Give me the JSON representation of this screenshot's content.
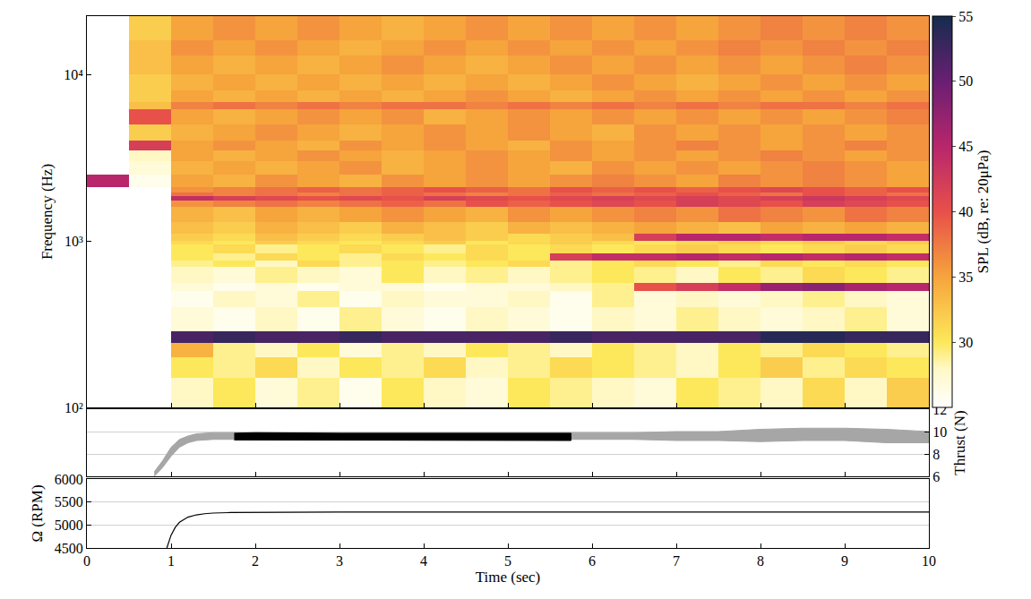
{
  "chart_data": [
    {
      "type": "heatmap",
      "ylabel": "Frequency (Hz)",
      "log": "y",
      "tick_labels": "y",
      "xlim": [
        0,
        10
      ],
      "xticks": [
        0,
        1,
        2,
        3,
        4,
        5,
        6,
        7,
        8,
        9,
        10
      ],
      "ylim": [
        100,
        22400
      ],
      "yticks": [
        {
          "value": 100,
          "label": "10²"
        },
        {
          "value": 1000,
          "label": "10³"
        },
        {
          "value": 10000,
          "label": "10⁴"
        }
      ],
      "time_edges": [
        0,
        0.5,
        1,
        1.5,
        2,
        2.5,
        3,
        3.5,
        4,
        4.5,
        5,
        5.5,
        6,
        6.5,
        7,
        7.5,
        8,
        8.5,
        9,
        9.5,
        10
      ],
      "frequency_edges": [
        100,
        150,
        200,
        245,
        285,
        400,
        500,
        560,
        700,
        760,
        840,
        950,
        1000,
        1100,
        1300,
        1600,
        1750,
        1850,
        1950,
        2100,
        2500,
        3000,
        3500,
        4000,
        5000,
        6200,
        6800,
        8000,
        10000,
        13000,
        16000,
        22400
      ],
      "spl": [
        [
          22,
          22,
          28,
          30,
          27,
          29,
          26,
          30,
          28,
          27,
          30,
          29,
          28,
          27,
          30,
          29,
          28,
          31,
          28,
          32
        ],
        [
          22,
          23,
          30,
          29,
          31,
          28,
          30,
          29,
          31,
          28,
          29,
          31,
          30,
          29,
          28,
          30,
          32,
          29,
          31,
          30
        ],
        [
          22,
          24,
          34,
          29,
          28,
          30,
          27,
          29,
          28,
          30,
          29,
          28,
          30,
          29,
          28,
          30,
          29,
          31,
          30,
          29
        ],
        [
          22,
          24,
          52,
          53,
          52,
          52,
          53,
          52,
          52,
          52,
          52,
          53,
          52,
          52,
          52,
          52,
          54,
          54,
          53,
          53
        ],
        [
          22,
          22,
          27,
          26,
          28,
          26,
          29,
          27,
          26,
          28,
          27,
          26,
          28,
          27,
          29,
          28,
          27,
          28,
          29,
          27
        ],
        [
          22,
          22,
          26,
          28,
          27,
          29,
          26,
          28,
          27,
          27,
          28,
          26,
          29,
          27,
          28,
          27,
          28,
          29,
          28,
          27
        ],
        [
          22,
          22,
          27,
          26,
          27,
          26,
          27,
          27,
          26,
          27,
          27,
          28,
          29,
          40,
          42,
          44,
          47,
          48,
          46,
          45
        ],
        [
          22,
          22,
          28,
          27,
          29,
          28,
          27,
          30,
          28,
          29,
          28,
          29,
          30,
          29,
          28,
          30,
          29,
          31,
          30,
          29
        ],
        [
          22,
          22,
          29,
          30,
          28,
          31,
          29,
          30,
          29,
          30,
          31,
          29,
          30,
          31,
          30,
          29,
          31,
          30,
          31,
          30
        ],
        [
          22,
          22,
          30,
          29,
          31,
          30,
          29,
          31,
          30,
          31,
          30,
          42,
          44,
          44,
          45,
          44,
          45,
          44,
          45,
          44
        ],
        [
          22,
          22,
          30,
          31,
          29,
          30,
          31,
          30,
          29,
          31,
          30,
          31,
          30,
          31,
          32,
          31,
          30,
          31,
          32,
          31
        ],
        [
          22,
          23,
          31,
          30,
          32,
          31,
          30,
          31,
          32,
          30,
          31,
          32,
          31,
          30,
          31,
          32,
          31,
          32,
          31,
          32
        ],
        [
          23,
          24,
          32,
          31,
          33,
          32,
          31,
          32,
          33,
          32,
          31,
          32,
          33,
          42,
          45,
          45,
          44,
          45,
          45,
          44
        ],
        [
          22,
          24,
          33,
          32,
          34,
          33,
          32,
          34,
          33,
          32,
          34,
          33,
          34,
          35,
          34,
          33,
          35,
          34,
          35,
          34
        ],
        [
          22,
          24,
          34,
          33,
          35,
          34,
          35,
          36,
          35,
          34,
          36,
          35,
          36,
          37,
          36,
          38,
          37,
          36,
          38,
          37
        ],
        [
          22,
          25,
          36,
          37,
          38,
          37,
          38,
          39,
          38,
          40,
          39,
          40,
          41,
          40,
          42,
          41,
          40,
          42,
          41,
          40
        ],
        [
          22,
          25,
          44,
          42,
          41,
          40,
          41,
          40,
          42,
          41,
          40,
          41,
          42,
          41,
          42,
          41,
          42,
          43,
          42,
          41
        ],
        [
          22,
          25,
          38,
          37,
          38,
          37,
          38,
          39,
          38,
          37,
          38,
          39,
          38,
          39,
          40,
          39,
          38,
          40,
          39,
          38
        ],
        [
          22,
          25,
          36,
          37,
          38,
          39,
          38,
          39,
          40,
          39,
          38,
          40,
          39,
          40,
          39,
          40,
          41,
          40,
          39,
          40
        ],
        [
          45,
          26,
          35,
          34,
          36,
          35,
          34,
          36,
          35,
          36,
          35,
          36,
          37,
          36,
          35,
          37,
          36,
          37,
          36,
          35
        ],
        [
          22,
          27,
          34,
          35,
          34,
          35,
          36,
          34,
          35,
          36,
          35,
          34,
          36,
          35,
          36,
          35,
          36,
          37,
          36,
          35
        ],
        [
          22,
          28,
          35,
          34,
          35,
          36,
          35,
          34,
          35,
          36,
          35,
          36,
          35,
          36,
          35,
          36,
          37,
          36,
          35,
          36
        ],
        [
          22,
          42,
          35,
          36,
          35,
          34,
          36,
          35,
          36,
          35,
          34,
          36,
          35,
          36,
          37,
          36,
          35,
          36,
          37,
          36
        ],
        [
          22,
          32,
          34,
          35,
          36,
          35,
          34,
          35,
          36,
          35,
          36,
          35,
          34,
          36,
          35,
          36,
          35,
          36,
          35,
          36
        ],
        [
          22,
          40,
          35,
          34,
          35,
          36,
          35,
          36,
          34,
          35,
          36,
          35,
          36,
          35,
          36,
          35,
          36,
          35,
          36,
          37
        ],
        [
          22,
          33,
          37,
          38,
          37,
          38,
          37,
          38,
          38,
          37,
          38,
          37,
          38,
          37,
          38,
          37,
          38,
          38,
          37,
          38
        ],
        [
          22,
          32,
          35,
          34,
          35,
          34,
          35,
          34,
          35,
          36,
          35,
          34,
          35,
          36,
          35,
          36,
          35,
          36,
          35,
          36
        ],
        [
          22,
          32,
          34,
          35,
          34,
          35,
          34,
          35,
          34,
          35,
          34,
          35,
          36,
          35,
          34,
          35,
          36,
          35,
          36,
          35
        ],
        [
          22,
          33,
          35,
          34,
          35,
          34,
          35,
          36,
          35,
          34,
          35,
          36,
          35,
          36,
          35,
          36,
          35,
          36,
          37,
          36
        ],
        [
          22,
          33,
          36,
          35,
          36,
          35,
          34,
          35,
          36,
          35,
          36,
          35,
          36,
          35,
          36,
          37,
          36,
          37,
          36,
          37
        ],
        [
          22,
          32,
          35,
          36,
          35,
          36,
          35,
          34,
          35,
          36,
          35,
          36,
          35,
          36,
          35,
          36,
          37,
          36,
          37,
          36
        ]
      ],
      "colorbar_title": "SPL (dB, re: 20μPa)",
      "colorbar_range": [
        25,
        55
      ],
      "colorbar_ticks": [
        30,
        35,
        40,
        45,
        50,
        55
      ]
    },
    {
      "type": "band",
      "ylabel": "Thrust (N)",
      "tick_labels": "y",
      "grid": true,
      "xlim": [
        0,
        10
      ],
      "xticks": [
        0,
        1,
        2,
        3,
        4,
        5,
        6,
        7,
        8,
        9,
        10
      ],
      "ylim": [
        6,
        12
      ],
      "yticks": [
        6,
        8,
        10,
        12
      ],
      "series": [
        {
          "color": "#a6a6a6",
          "x": [
            0.8,
            0.9,
            1.0,
            1.1,
            1.2,
            1.3,
            1.5,
            1.75,
            5.75,
            6.5,
            7,
            7.5,
            8,
            8.5,
            9,
            9.5,
            10
          ],
          "lower": [
            6,
            6.8,
            7.8,
            8.6,
            9.0,
            9.2,
            9.3,
            9.3,
            9.3,
            9.3,
            9.2,
            9.2,
            9.1,
            9.2,
            9.2,
            9.0,
            9.0
          ],
          "upper": [
            6.4,
            7.4,
            8.6,
            9.3,
            9.6,
            9.8,
            9.9,
            9.9,
            9.9,
            9.9,
            10.0,
            10.0,
            10.2,
            10.3,
            10.3,
            10.2,
            10.0
          ]
        },
        {
          "color": "#000000",
          "x": [
            1.75,
            2,
            3,
            4,
            5,
            5.75
          ],
          "lower": [
            9.25,
            9.25,
            9.2,
            9.2,
            9.2,
            9.2
          ],
          "upper": [
            9.85,
            9.9,
            9.85,
            9.85,
            9.85,
            9.85
          ]
        }
      ]
    },
    {
      "type": "line",
      "xlabel": "Time (sec)",
      "ylabel": "Ω (RPM)",
      "grid": true,
      "xlim": [
        0,
        10
      ],
      "xticks": [
        0,
        1,
        2,
        3,
        4,
        5,
        6,
        7,
        8,
        9,
        10
      ],
      "ylim": [
        4500,
        6000
      ],
      "yticks": [
        4500,
        5000,
        5500,
        6000
      ],
      "series": [
        {
          "color": "#000000",
          "x": [
            0.95,
            1.0,
            1.05,
            1.1,
            1.2,
            1.3,
            1.4,
            1.5,
            1.7,
            2,
            3,
            4,
            5,
            6,
            7,
            8,
            9,
            10
          ],
          "values": [
            4500,
            4780,
            4950,
            5060,
            5170,
            5220,
            5245,
            5260,
            5270,
            5275,
            5280,
            5280,
            5280,
            5280,
            5280,
            5280,
            5280,
            5280
          ]
        }
      ]
    }
  ]
}
